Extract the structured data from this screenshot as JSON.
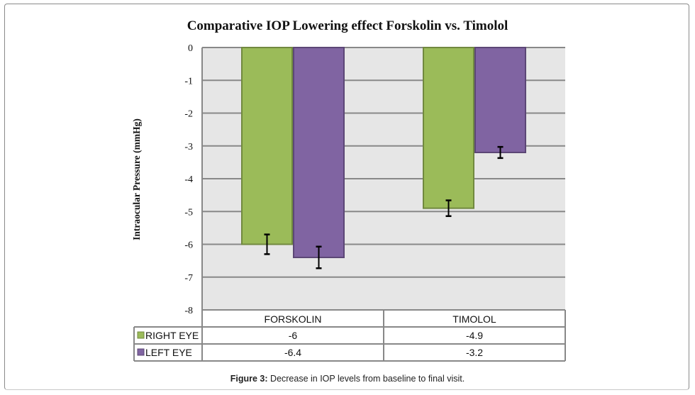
{
  "figure": {
    "caption_label": "Figure 3:",
    "caption_text": " Decrease in IOP levels from baseline to final visit."
  },
  "chart_data": {
    "type": "bar",
    "title": "Comparative IOP Lowering effect Forskolin vs. Timolol",
    "xlabel": "",
    "ylabel": "Intraocular Pressure (mmHg)",
    "ylim": [
      -8,
      0
    ],
    "yticks": [
      0,
      -1,
      -2,
      -3,
      -4,
      -5,
      -6,
      -7,
      -8
    ],
    "grid": true,
    "categories": [
      "FORSKOLIN",
      "TIMOLOL"
    ],
    "series": [
      {
        "name": "RIGHT EYE",
        "color": "#9bbb59",
        "edge": "#71893f",
        "values": [
          -6,
          -4.9
        ],
        "error": [
          0.3,
          0.24
        ],
        "labels": [
          "-6",
          "-4.9"
        ]
      },
      {
        "name": "LEFT EYE",
        "color": "#8064a2",
        "edge": "#5c4776",
        "values": [
          -6.4,
          -3.2
        ],
        "error": [
          0.33,
          0.17
        ],
        "labels": [
          "-6.4",
          "-3.2"
        ]
      }
    ],
    "legend": "data-table-left",
    "plot_background": "#e6e6e6",
    "grid_color": "#888888"
  }
}
